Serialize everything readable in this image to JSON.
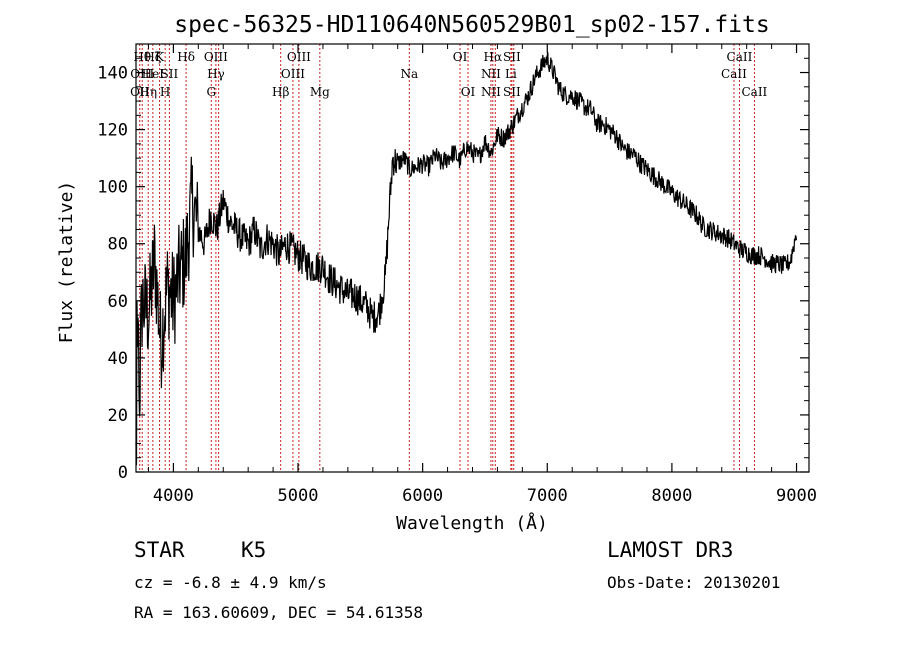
{
  "chart_data": {
    "type": "line",
    "title": "spec-56325-HD110640N560529B01_sp02-157.fits",
    "xlabel": "Wavelength (Å)",
    "ylabel": "Flux (relative)",
    "xlim": [
      3700,
      9100
    ],
    "ylim": [
      0,
      150
    ],
    "x_ticks": [
      4000,
      5000,
      6000,
      7000,
      8000,
      9000
    ],
    "y_ticks": [
      0,
      20,
      40,
      60,
      80,
      100,
      120,
      140
    ],
    "grid": false,
    "line_color": "#000000",
    "marker_color": "#cc2222",
    "series": [
      {
        "x": [
          3700,
          3750,
          3800,
          3850,
          3900,
          3950,
          4000,
          4050,
          4100,
          4150,
          4200,
          4250,
          4300,
          4350,
          4400,
          4450,
          4500,
          4550,
          4600,
          4650,
          4700,
          4750,
          4800,
          4850,
          4900,
          4950,
          5000,
          5050,
          5100,
          5150,
          5200,
          5250,
          5300,
          5350,
          5400,
          5450,
          5500,
          5550,
          5600,
          5650,
          5700,
          5730,
          5760,
          5800,
          5850,
          5900,
          5950,
          6000,
          6050,
          6100,
          6150,
          6200,
          6250,
          6300,
          6350,
          6400,
          6450,
          6500,
          6550,
          6600,
          6650,
          6700,
          6750,
          6800,
          6850,
          6900,
          6950,
          7000,
          7050,
          7100,
          7150,
          7200,
          7250,
          7300,
          7350,
          7400,
          7450,
          7500,
          7550,
          7600,
          7650,
          7700,
          7750,
          7800,
          7850,
          7900,
          7950,
          8000,
          8050,
          8100,
          8150,
          8200,
          8250,
          8300,
          8350,
          8400,
          8450,
          8500,
          8550,
          8600,
          8650,
          8700,
          8750,
          8800,
          8850,
          8900,
          8950,
          9000
        ],
        "values": [
          5,
          60,
          55,
          75,
          45,
          65,
          60,
          70,
          75,
          95,
          85,
          80,
          90,
          85,
          95,
          88,
          85,
          82,
          80,
          85,
          78,
          82,
          80,
          76,
          80,
          78,
          76,
          74,
          72,
          72,
          72,
          68,
          66,
          64,
          62,
          62,
          60,
          58,
          54,
          56,
          68,
          90,
          110,
          108,
          110,
          106,
          107,
          108,
          107,
          111,
          108,
          110,
          112,
          109,
          114,
          112,
          110,
          116,
          112,
          118,
          117,
          120,
          124,
          128,
          132,
          138,
          142,
          145,
          140,
          134,
          132,
          132,
          130,
          128,
          127,
          122,
          122,
          120,
          118,
          114,
          112,
          111,
          108,
          106,
          104,
          102,
          100,
          98,
          96,
          94,
          92,
          90,
          86,
          85,
          84,
          83,
          82,
          80,
          78,
          77,
          76,
          76,
          75,
          73,
          73,
          72,
          74,
          84
        ]
      }
    ],
    "lines": [
      {
        "x": 3730,
        "labels": [
          "OII"
        ],
        "row": [
          3
        ]
      },
      {
        "x": 3750,
        "labels": [
          "Hθ",
          "OIII"
        ],
        "row": [
          1,
          2
        ]
      },
      {
        "x": 3798,
        "labels": [
          "Hη"
        ],
        "row": [
          3
        ]
      },
      {
        "x": 3835,
        "labels": [
          "Hζ",
          "HeI"
        ],
        "row": [
          1,
          2
        ]
      },
      {
        "x": 3889,
        "labels": [
          "K"
        ],
        "row": [
          1
        ]
      },
      {
        "x": 3934,
        "labels": [
          "H"
        ],
        "row": [
          3
        ]
      },
      {
        "x": 3968,
        "labels": [
          "SII"
        ],
        "row": [
          2
        ]
      },
      {
        "x": 4102,
        "labels": [
          "Hδ"
        ],
        "row": [
          1
        ]
      },
      {
        "x": 4304,
        "labels": [
          "G"
        ],
        "row": [
          3
        ]
      },
      {
        "x": 4341,
        "labels": [
          "OIII",
          "Hγ"
        ],
        "row": [
          1,
          2
        ]
      },
      {
        "x": 4363,
        "labels": [],
        "row": []
      },
      {
        "x": 4861,
        "labels": [
          "Hβ"
        ],
        "row": [
          3
        ]
      },
      {
        "x": 4959,
        "labels": [
          "OIII"
        ],
        "row": [
          2
        ]
      },
      {
        "x": 5007,
        "labels": [
          "OIII"
        ],
        "row": [
          1
        ]
      },
      {
        "x": 5175,
        "labels": [
          "Mg"
        ],
        "row": [
          3
        ]
      },
      {
        "x": 5893,
        "labels": [
          "Na"
        ],
        "row": [
          2
        ]
      },
      {
        "x": 6300,
        "labels": [
          "OI"
        ],
        "row": [
          1
        ]
      },
      {
        "x": 6364,
        "labels": [
          "OI"
        ],
        "row": [
          3
        ]
      },
      {
        "x": 6548,
        "labels": [
          "NII",
          "NII"
        ],
        "row": [
          2,
          3
        ]
      },
      {
        "x": 6563,
        "labels": [
          "Hα"
        ],
        "row": [
          1
        ]
      },
      {
        "x": 6583,
        "labels": [],
        "row": []
      },
      {
        "x": 6708,
        "labels": [
          "Li"
        ],
        "row": [
          2
        ]
      },
      {
        "x": 6716,
        "labels": [
          "SII",
          "SII"
        ],
        "row": [
          1,
          3
        ]
      },
      {
        "x": 6731,
        "labels": [],
        "row": []
      },
      {
        "x": 8498,
        "labels": [
          "CaII"
        ],
        "row": [
          2
        ]
      },
      {
        "x": 8542,
        "labels": [
          "CaII"
        ],
        "row": [
          1
        ]
      },
      {
        "x": 8662,
        "labels": [
          "CaII"
        ],
        "row": [
          3
        ]
      }
    ]
  },
  "info": {
    "class": "STAR",
    "subclass": "K5",
    "survey": "LAMOST DR3",
    "cz": "cz = -6.8 ± 4.9 km/s",
    "obs_date": "Obs-Date: 20130201",
    "coords": "RA = 163.60609, DEC =  54.61358"
  }
}
